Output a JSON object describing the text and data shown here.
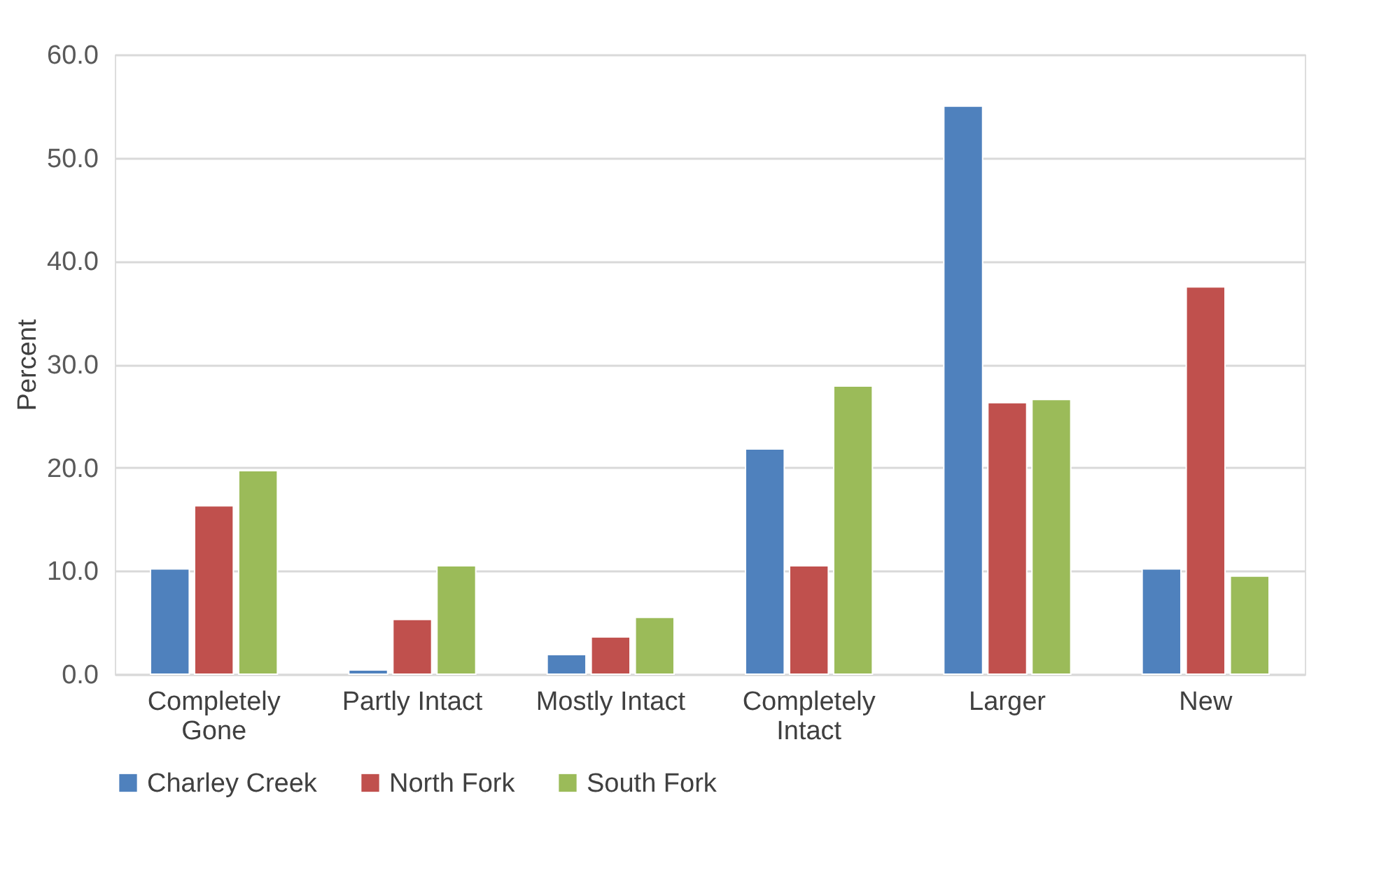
{
  "chart_data": {
    "type": "bar",
    "ylabel": "Percent",
    "categories": [
      "Completely Gone",
      "Partly Intact",
      "Mostly Intact",
      "Completely Intact",
      "Larger",
      "New"
    ],
    "series": [
      {
        "name": "Charley Creek",
        "color": "#4f81bd",
        "values": [
          10.2,
          0.4,
          1.9,
          21.8,
          55.0,
          10.2
        ]
      },
      {
        "name": "North Fork",
        "color": "#c0504d",
        "values": [
          16.3,
          5.3,
          3.6,
          10.5,
          26.3,
          37.5
        ]
      },
      {
        "name": "South Fork",
        "color": "#9bbb59",
        "values": [
          19.7,
          10.5,
          5.5,
          27.9,
          26.6,
          9.5
        ]
      }
    ],
    "ylim": [
      0,
      60
    ],
    "yticks": [
      {
        "value": 0,
        "label": "0.0"
      },
      {
        "value": 10,
        "label": "10.0"
      },
      {
        "value": 20,
        "label": "20.0"
      },
      {
        "value": 30,
        "label": "30.0"
      },
      {
        "value": 40,
        "label": "40.0"
      },
      {
        "value": 50,
        "label": "50.0"
      },
      {
        "value": 60,
        "label": "60.0"
      }
    ],
    "grid": "y",
    "legend": "bottom"
  }
}
